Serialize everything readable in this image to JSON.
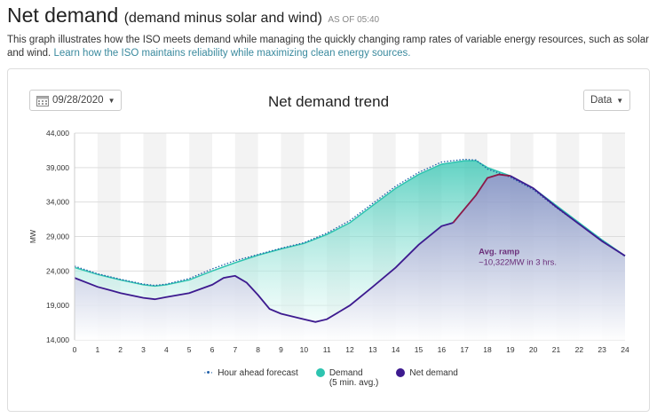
{
  "header": {
    "title": "Net demand",
    "subtitle": "(demand minus solar and wind)",
    "as_of": "AS OF 05:40"
  },
  "description": {
    "text": "This graph illustrates how the ISO meets demand while managing the quickly changing ramp rates of variable energy resources, such as solar and wind.",
    "link": "Learn how the ISO maintains reliability while maximizing clean energy sources."
  },
  "controls": {
    "date": "09/28/2020",
    "data_label": "Data",
    "icon": "calendar-icon"
  },
  "colors": {
    "demand": "#2ec4b0",
    "net": "#3d1a8f",
    "forecast": "#1f5fa8",
    "ramp": "#6b2f7a",
    "net_line_ramp": "#8b1a4a"
  },
  "chart_data": {
    "type": "area",
    "title": "Net demand trend",
    "ylabel": "MW",
    "xlabel": "",
    "ylim": [
      14000,
      44000
    ],
    "xlim": [
      0,
      24
    ],
    "yticks": [
      "14,000",
      "19,000",
      "24,000",
      "29,000",
      "34,000",
      "39,000",
      "44,000"
    ],
    "xticks": [
      "0",
      "1",
      "2",
      "3",
      "4",
      "5",
      "6",
      "7",
      "8",
      "9",
      "10",
      "11",
      "12",
      "13",
      "14",
      "15",
      "16",
      "17",
      "18",
      "19",
      "20",
      "21",
      "22",
      "23",
      "24"
    ],
    "annotation": {
      "title": "Avg. ramp",
      "text": "~10,322MW in 3 hrs.",
      "x": 17.5,
      "y": 25500
    },
    "series": [
      {
        "name": "Hour ahead forecast",
        "x": [
          0,
          1,
          2,
          3,
          3.5,
          4,
          5,
          6,
          7,
          8,
          9,
          10,
          11,
          12,
          13,
          14,
          15,
          16,
          17,
          17.5,
          18,
          19,
          20,
          21,
          22,
          23,
          24
        ],
        "values": [
          24700,
          23600,
          22800,
          22100,
          21900,
          22100,
          22900,
          24300,
          25500,
          26400,
          27300,
          28100,
          29500,
          31300,
          33800,
          36300,
          38300,
          39800,
          40200,
          40100,
          38800,
          37600,
          35800,
          33200,
          30800,
          28400,
          26100
        ]
      },
      {
        "name": "Demand",
        "name2": "(5 min. avg.)",
        "x": [
          0,
          1,
          2,
          3,
          3.5,
          4,
          5,
          6,
          7,
          8,
          9,
          10,
          11,
          12,
          13,
          14,
          15,
          16,
          17,
          17.5,
          18,
          19,
          20,
          21,
          22,
          23,
          24
        ],
        "values": [
          24500,
          23500,
          22700,
          22000,
          21800,
          22000,
          22700,
          24000,
          25200,
          26300,
          27200,
          28000,
          29300,
          31000,
          33500,
          36000,
          38000,
          39500,
          40000,
          40000,
          39000,
          37800,
          36000,
          33500,
          31000,
          28500,
          26200
        ]
      },
      {
        "name": "Net demand",
        "x": [
          0,
          1,
          2,
          3,
          3.5,
          4,
          5,
          6,
          6.5,
          7,
          7.5,
          8,
          8.5,
          9,
          10,
          10.5,
          11,
          12,
          13,
          14,
          15,
          16,
          16.5,
          17,
          17.5,
          18,
          18.5,
          19,
          20,
          21,
          22,
          23,
          24
        ],
        "values": [
          23000,
          21700,
          20800,
          20100,
          19900,
          20200,
          20800,
          22000,
          23000,
          23300,
          22300,
          20500,
          18500,
          17800,
          17000,
          16600,
          17000,
          19000,
          21700,
          24500,
          27800,
          30500,
          31000,
          33000,
          35000,
          37500,
          38000,
          37800,
          36000,
          33300,
          30800,
          28300,
          26200
        ]
      }
    ]
  }
}
